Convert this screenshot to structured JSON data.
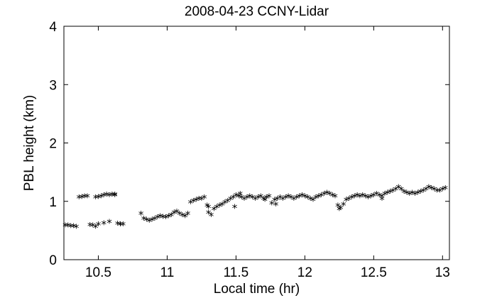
{
  "chart_data": {
    "type": "scatter",
    "title": "2008-04-23 CCNY-Lidar",
    "xlabel": "Local time (hr)",
    "ylabel": "PBL height (km)",
    "xlim": [
      10.25,
      13.05
    ],
    "ylim": [
      0,
      4
    ],
    "xticks": [
      "10.5",
      "11",
      "11.5",
      "12",
      "12.5",
      "13"
    ],
    "yticks": [
      "0",
      "1",
      "2",
      "3",
      "4"
    ],
    "grid": false,
    "marker": "*",
    "marker_color": "#000000",
    "series": [
      {
        "x": [
          10.26,
          10.28,
          10.3,
          10.32,
          10.34,
          10.36,
          10.38,
          10.4,
          10.42,
          10.44,
          10.46,
          10.48,
          10.5,
          10.52,
          10.54,
          10.56,
          10.58,
          10.6,
          10.62,
          10.64,
          10.66,
          10.48,
          10.5,
          10.54,
          10.58,
          10.62,
          10.66,
          10.68,
          10.81,
          10.83,
          10.85,
          10.87,
          10.89,
          10.91,
          10.93,
          10.95,
          10.97,
          10.99,
          11.01,
          11.03,
          11.05,
          11.07,
          11.09,
          11.11,
          11.13,
          11.15,
          11.17,
          11.19,
          11.21,
          11.23,
          11.25,
          11.27,
          11.29,
          11.3,
          11.32,
          11.34,
          11.36,
          11.38,
          11.4,
          11.42,
          11.44,
          11.46,
          11.48,
          11.5,
          11.52,
          11.54,
          11.56,
          11.58,
          11.6,
          11.62,
          11.64,
          11.66,
          11.68,
          11.7,
          11.72,
          11.74,
          11.76,
          11.78,
          11.8,
          11.82,
          11.84,
          11.86,
          11.88,
          11.9,
          11.92,
          11.94,
          11.96,
          11.98,
          12.0,
          12.02,
          12.04,
          12.06,
          12.08,
          12.1,
          12.12,
          12.14,
          12.16,
          12.18,
          12.2,
          12.22,
          12.24,
          12.26,
          12.28,
          12.3,
          12.32,
          12.34,
          12.36,
          12.38,
          12.4,
          12.42,
          12.44,
          12.46,
          12.48,
          12.5,
          12.52,
          12.54,
          12.56,
          12.58,
          12.6,
          12.62,
          12.64,
          12.66,
          12.68,
          12.7,
          12.72,
          12.74,
          12.76,
          12.78,
          12.8,
          12.82,
          12.84,
          12.86,
          12.88,
          12.9,
          12.92,
          12.94,
          12.96,
          12.98,
          13.0,
          13.02,
          11.3,
          11.49,
          11.53,
          11.71,
          11.79,
          12.25,
          12.56
        ],
        "y": [
          0.6,
          0.6,
          0.59,
          0.59,
          0.58,
          1.08,
          1.09,
          1.1,
          1.1,
          0.61,
          0.6,
          0.58,
          1.09,
          1.1,
          1.12,
          1.13,
          1.12,
          1.13,
          1.13,
          0.63,
          0.62,
          1.08,
          0.62,
          0.64,
          0.66,
          1.12,
          0.62,
          0.62,
          0.8,
          0.72,
          0.7,
          0.68,
          0.7,
          0.72,
          0.74,
          0.76,
          0.75,
          0.74,
          0.76,
          0.78,
          0.82,
          0.84,
          0.8,
          0.78,
          0.76,
          0.8,
          1.0,
          1.02,
          1.04,
          1.06,
          1.06,
          1.08,
          0.94,
          0.82,
          0.78,
          0.88,
          0.92,
          0.94,
          0.96,
          1.0,
          1.02,
          1.06,
          1.08,
          1.12,
          1.1,
          1.08,
          1.06,
          1.08,
          1.1,
          1.08,
          1.06,
          1.08,
          1.1,
          1.06,
          1.08,
          1.1,
          0.98,
          1.04,
          1.06,
          1.08,
          1.06,
          1.08,
          1.1,
          1.08,
          1.06,
          1.08,
          1.1,
          1.12,
          1.1,
          1.08,
          1.06,
          1.04,
          1.08,
          1.1,
          1.12,
          1.14,
          1.16,
          1.14,
          1.12,
          1.1,
          0.94,
          0.9,
          0.96,
          1.04,
          1.06,
          1.08,
          1.1,
          1.12,
          1.1,
          1.12,
          1.1,
          1.08,
          1.1,
          1.12,
          1.14,
          1.12,
          1.1,
          1.14,
          1.16,
          1.18,
          1.2,
          1.22,
          1.26,
          1.22,
          1.18,
          1.16,
          1.14,
          1.16,
          1.14,
          1.16,
          1.18,
          1.2,
          1.22,
          1.26,
          1.24,
          1.22,
          1.2,
          1.2,
          1.22,
          1.24,
          0.92,
          0.92,
          1.14,
          1.04,
          0.96,
          0.88,
          1.06
        ]
      }
    ]
  }
}
